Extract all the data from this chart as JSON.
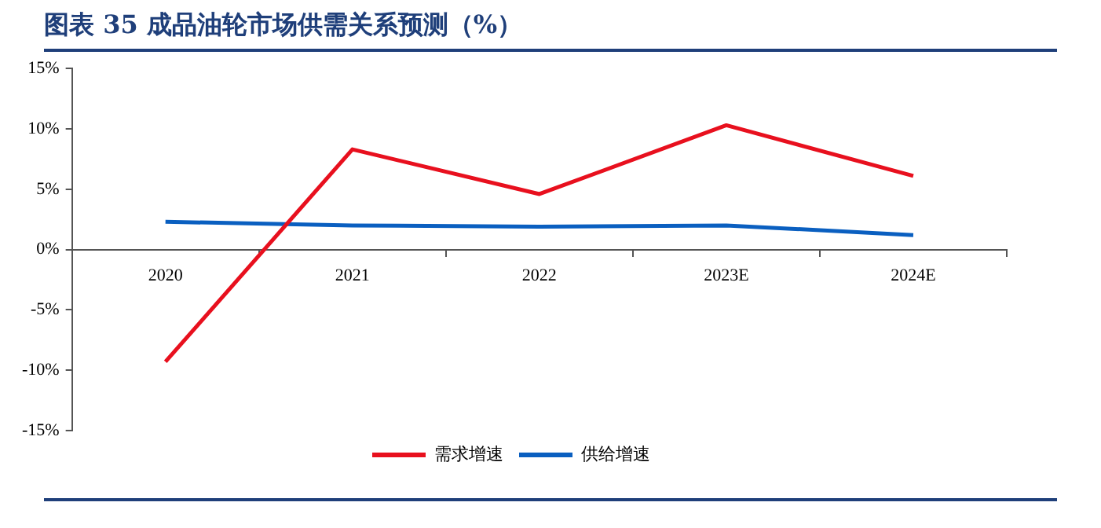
{
  "chart_data": {
    "type": "line",
    "title": "图表 35   成品油轮市场供需关系预测（%）",
    "categories": [
      "2020",
      "2021",
      "2022",
      "2023E",
      "2024E"
    ],
    "series": [
      {
        "name": "需求增速",
        "color": "#e8101e",
        "values": [
          -9.3,
          8.3,
          4.6,
          10.3,
          6.1
        ]
      },
      {
        "name": "供给增速",
        "color": "#0a5fc0",
        "values": [
          2.3,
          2.0,
          1.9,
          2.0,
          1.2
        ]
      }
    ],
    "ylim": [
      -15,
      15
    ],
    "yticks": [
      {
        "value": -15,
        "label": "-15%"
      },
      {
        "value": -10,
        "label": "-10%"
      },
      {
        "value": -5,
        "label": "-5%"
      },
      {
        "value": 0,
        "label": "0%"
      },
      {
        "value": 5,
        "label": "5%"
      },
      {
        "value": 10,
        "label": "10%"
      },
      {
        "value": 15,
        "label": "15%"
      }
    ],
    "grid": false,
    "legend": "bottom",
    "marker": "none",
    "line_style": "solid"
  }
}
